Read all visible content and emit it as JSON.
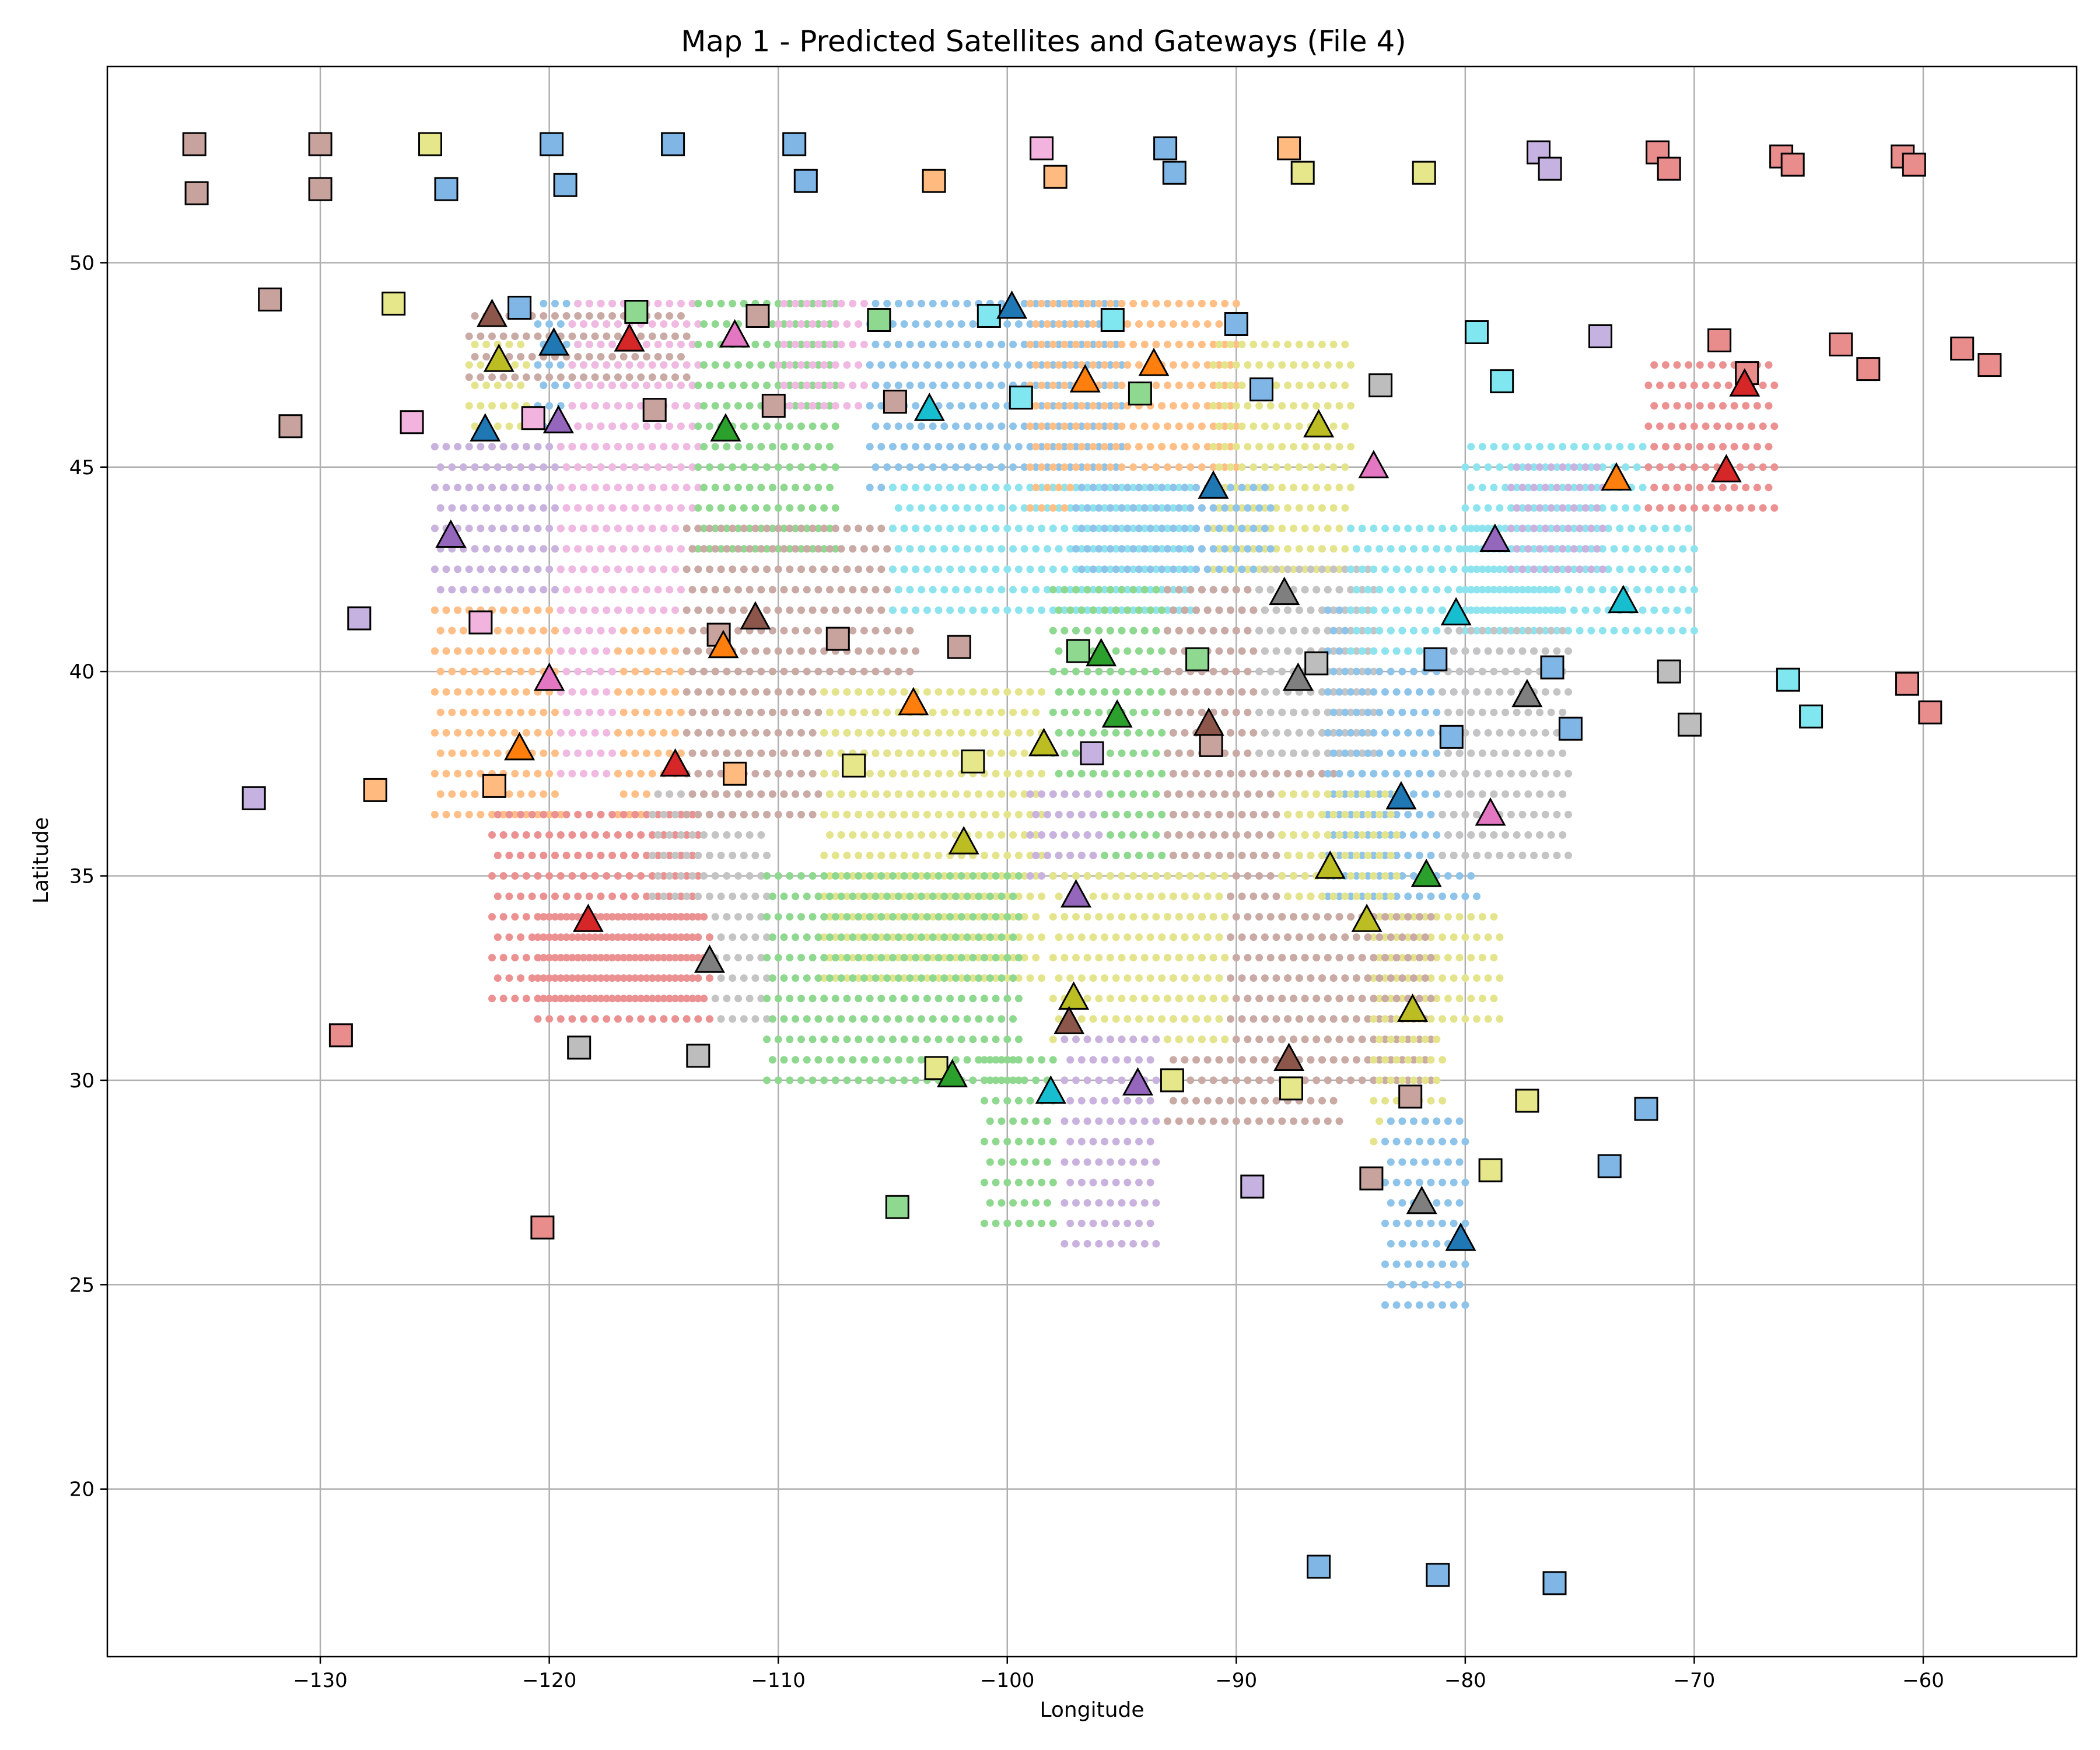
{
  "chart_data": {
    "type": "scatter",
    "title": "Map 1 - Predicted Satellites and Gateways (File 4)",
    "xlabel": "Longitude",
    "ylabel": "Latitude",
    "xlim": [
      -139.3,
      -53.3
    ],
    "ylim": [
      15.9,
      54.8
    ],
    "xticks": [
      -130,
      -120,
      -110,
      -100,
      -90,
      -80,
      -70,
      -60
    ],
    "yticks": [
      20,
      25,
      30,
      35,
      40,
      45,
      50
    ],
    "grid": true,
    "palette": [
      "#1f77b4",
      "#ff7f0e",
      "#2ca02c",
      "#d62728",
      "#9467bd",
      "#8c564b",
      "#e377c2",
      "#7f7f7f",
      "#bcbd22",
      "#17becf"
    ],
    "coverage_regions": [
      {
        "color": 5,
        "x": [
          -123.5,
          -114
        ],
        "y": [
          47.2,
          49.0
        ]
      },
      {
        "color": 0,
        "x": [
          -120.5,
          -116.5
        ],
        "y": [
          45.5,
          49.0
        ]
      },
      {
        "color": 6,
        "x": [
          -119,
          -113.5
        ],
        "y": [
          41.5,
          49.0
        ]
      },
      {
        "color": 8,
        "x": [
          -123.5,
          -121
        ],
        "y": [
          44.5,
          48.0
        ]
      },
      {
        "color": 4,
        "x": [
          -125,
          -119
        ],
        "y": [
          40.5,
          45.5
        ]
      },
      {
        "color": 1,
        "x": [
          -125,
          -119.5
        ],
        "y": [
          36.5,
          41.5
        ]
      },
      {
        "color": 6,
        "x": [
          -119.5,
          -117
        ],
        "y": [
          37.5,
          46.0
        ]
      },
      {
        "color": 1,
        "x": [
          -117,
          -111.5
        ],
        "y": [
          36.5,
          41.0
        ]
      },
      {
        "color": 3,
        "x": [
          -122.5,
          -113.5
        ],
        "y": [
          32.0,
          36.5
        ]
      },
      {
        "color": 7,
        "x": [
          -115.5,
          -110.5
        ],
        "y": [
          31.5,
          37.0
        ]
      },
      {
        "color": 2,
        "x": [
          -113.5,
          -107.5
        ],
        "y": [
          43.0,
          49.0
        ]
      },
      {
        "color": 6,
        "x": [
          -110,
          -106
        ],
        "y": [
          46.5,
          49.0
        ]
      },
      {
        "color": 5,
        "x": [
          -114,
          -104
        ],
        "y": [
          36.5,
          43.5
        ]
      },
      {
        "color": 0,
        "x": [
          -106,
          -95
        ],
        "y": [
          44.5,
          49.0
        ]
      },
      {
        "color": 9,
        "x": [
          -105,
          -92
        ],
        "y": [
          41.5,
          44.5
        ]
      },
      {
        "color": 1,
        "x": [
          -99,
          -90
        ],
        "y": [
          44.0,
          49.0
        ]
      },
      {
        "color": 8,
        "x": [
          -91,
          -85
        ],
        "y": [
          42.5,
          48.0
        ]
      },
      {
        "color": 0,
        "x": [
          -97,
          -88.5
        ],
        "y": [
          41.0,
          44.5
        ]
      },
      {
        "color": 2,
        "x": [
          -98,
          -92.5
        ],
        "y": [
          35.0,
          42.0
        ]
      },
      {
        "color": 5,
        "x": [
          -93,
          -85.5
        ],
        "y": [
          29.0,
          42.0
        ]
      },
      {
        "color": 7,
        "x": [
          -89,
          -84
        ],
        "y": [
          38.0,
          42.5
        ]
      },
      {
        "color": 0,
        "x": [
          -86,
          -79.5
        ],
        "y": [
          34.5,
          41.5
        ]
      },
      {
        "color": 9,
        "x": [
          -85,
          -76
        ],
        "y": [
          40.5,
          43.5
        ]
      },
      {
        "color": 9,
        "x": [
          -80,
          -70
        ],
        "y": [
          41.0,
          45.5
        ]
      },
      {
        "color": 7,
        "x": [
          -81,
          -75.5
        ],
        "y": [
          35.5,
          41.0
        ]
      },
      {
        "color": 3,
        "x": [
          -72,
          -66.5
        ],
        "y": [
          44.0,
          47.5
        ]
      },
      {
        "color": 4,
        "x": [
          -78,
          -74
        ],
        "y": [
          42.5,
          45.0
        ]
      },
      {
        "color": 8,
        "x": [
          -108,
          -98.5
        ],
        "y": [
          32.5,
          39.5
        ]
      },
      {
        "color": 2,
        "x": [
          -110.5,
          -99.5
        ],
        "y": [
          30.0,
          35.0
        ]
      },
      {
        "color": 2,
        "x": [
          -101,
          -98
        ],
        "y": [
          26.5,
          30.5
        ]
      },
      {
        "color": 4,
        "x": [
          -99,
          -96
        ],
        "y": [
          35.0,
          37.0
        ]
      },
      {
        "color": 8,
        "x": [
          -98,
          -90.5
        ],
        "y": [
          31.0,
          35.0
        ]
      },
      {
        "color": 4,
        "x": [
          -97.5,
          -93.5
        ],
        "y": [
          26.0,
          31.0
        ]
      },
      {
        "color": 8,
        "x": [
          -88,
          -83
        ],
        "y": [
          31.0,
          37.0
        ]
      },
      {
        "color": 8,
        "x": [
          -84,
          -78.5
        ],
        "y": [
          31.5,
          34.0
        ]
      },
      {
        "color": 5,
        "x": [
          -88,
          -81.5
        ],
        "y": [
          30.0,
          34.0
        ]
      },
      {
        "color": 8,
        "x": [
          -84,
          -81
        ],
        "y": [
          28.5,
          31.5
        ]
      },
      {
        "color": 0,
        "x": [
          -83.5,
          -80
        ],
        "y": [
          24.5,
          29.0
        ]
      },
      {
        "color": 3,
        "x": [
          -120.5,
          -113
        ],
        "y": [
          31.5,
          34.0
        ]
      }
    ],
    "satellites": [
      {
        "lon": -122.5,
        "lat": 48.7,
        "color": 5
      },
      {
        "lon": -119.8,
        "lat": 48.0,
        "color": 0
      },
      {
        "lon": -116.5,
        "lat": 48.1,
        "color": 3
      },
      {
        "lon": -111.9,
        "lat": 48.2,
        "color": 6
      },
      {
        "lon": -122.2,
        "lat": 47.6,
        "color": 8
      },
      {
        "lon": -122.8,
        "lat": 45.9,
        "color": 0
      },
      {
        "lon": -119.6,
        "lat": 46.1,
        "color": 4
      },
      {
        "lon": -112.3,
        "lat": 45.9,
        "color": 2
      },
      {
        "lon": -124.3,
        "lat": 43.3,
        "color": 4
      },
      {
        "lon": -111.0,
        "lat": 41.3,
        "color": 5
      },
      {
        "lon": -112.4,
        "lat": 40.6,
        "color": 1
      },
      {
        "lon": -120.0,
        "lat": 39.8,
        "color": 6
      },
      {
        "lon": -121.3,
        "lat": 38.1,
        "color": 1
      },
      {
        "lon": -114.5,
        "lat": 37.7,
        "color": 3
      },
      {
        "lon": -118.3,
        "lat": 33.9,
        "color": 3
      },
      {
        "lon": -113.0,
        "lat": 32.9,
        "color": 7
      },
      {
        "lon": -103.4,
        "lat": 46.4,
        "color": 9
      },
      {
        "lon": -99.8,
        "lat": 48.9,
        "color": 0
      },
      {
        "lon": -96.6,
        "lat": 47.1,
        "color": 1
      },
      {
        "lon": -93.6,
        "lat": 47.5,
        "color": 1
      },
      {
        "lon": -91.0,
        "lat": 44.5,
        "color": 0
      },
      {
        "lon": -86.4,
        "lat": 46.0,
        "color": 8
      },
      {
        "lon": -84.0,
        "lat": 45.0,
        "color": 6
      },
      {
        "lon": -104.1,
        "lat": 39.2,
        "color": 1
      },
      {
        "lon": -95.9,
        "lat": 40.4,
        "color": 2
      },
      {
        "lon": -95.2,
        "lat": 38.9,
        "color": 2
      },
      {
        "lon": -98.4,
        "lat": 38.2,
        "color": 8
      },
      {
        "lon": -91.2,
        "lat": 38.7,
        "color": 5
      },
      {
        "lon": -87.9,
        "lat": 41.9,
        "color": 7
      },
      {
        "lon": -87.3,
        "lat": 39.8,
        "color": 7
      },
      {
        "lon": -101.9,
        "lat": 35.8,
        "color": 8
      },
      {
        "lon": -97.0,
        "lat": 34.5,
        "color": 4
      },
      {
        "lon": -97.1,
        "lat": 32.0,
        "color": 8
      },
      {
        "lon": -97.3,
        "lat": 31.4,
        "color": 5
      },
      {
        "lon": -102.4,
        "lat": 30.1,
        "color": 2
      },
      {
        "lon": -98.1,
        "lat": 29.7,
        "color": 9
      },
      {
        "lon": -94.3,
        "lat": 29.9,
        "color": 4
      },
      {
        "lon": -87.7,
        "lat": 30.5,
        "color": 5
      },
      {
        "lon": -85.9,
        "lat": 35.2,
        "color": 8
      },
      {
        "lon": -84.3,
        "lat": 33.9,
        "color": 8
      },
      {
        "lon": -82.3,
        "lat": 31.7,
        "color": 8
      },
      {
        "lon": -82.8,
        "lat": 36.9,
        "color": 0
      },
      {
        "lon": -81.7,
        "lat": 35.0,
        "color": 2
      },
      {
        "lon": -80.4,
        "lat": 41.4,
        "color": 9
      },
      {
        "lon": -78.7,
        "lat": 43.2,
        "color": 4
      },
      {
        "lon": -77.3,
        "lat": 39.4,
        "color": 7
      },
      {
        "lon": -78.9,
        "lat": 36.5,
        "color": 6
      },
      {
        "lon": -73.4,
        "lat": 44.7,
        "color": 1
      },
      {
        "lon": -73.1,
        "lat": 41.7,
        "color": 9
      },
      {
        "lon": -68.6,
        "lat": 44.9,
        "color": 3
      },
      {
        "lon": -67.8,
        "lat": 47.0,
        "color": 3
      },
      {
        "lon": -81.9,
        "lat": 27.0,
        "color": 7
      },
      {
        "lon": -80.2,
        "lat": 26.1,
        "color": 0
      }
    ],
    "gateways": [
      {
        "lon": -135.5,
        "lat": 52.9,
        "color": 5
      },
      {
        "lon": -135.4,
        "lat": 51.7,
        "color": 5
      },
      {
        "lon": -130.0,
        "lat": 52.9,
        "color": 5
      },
      {
        "lon": -130.0,
        "lat": 51.8,
        "color": 5
      },
      {
        "lon": -125.2,
        "lat": 52.9,
        "color": 8
      },
      {
        "lon": -124.5,
        "lat": 51.8,
        "color": 0
      },
      {
        "lon": -119.9,
        "lat": 52.9,
        "color": 0
      },
      {
        "lon": -119.3,
        "lat": 51.9,
        "color": 0
      },
      {
        "lon": -114.6,
        "lat": 52.9,
        "color": 0
      },
      {
        "lon": -109.3,
        "lat": 52.9,
        "color": 0
      },
      {
        "lon": -108.8,
        "lat": 52.0,
        "color": 0
      },
      {
        "lon": -103.2,
        "lat": 52.0,
        "color": 1
      },
      {
        "lon": -98.5,
        "lat": 52.8,
        "color": 6
      },
      {
        "lon": -97.9,
        "lat": 52.1,
        "color": 1
      },
      {
        "lon": -93.1,
        "lat": 52.8,
        "color": 0
      },
      {
        "lon": -92.7,
        "lat": 52.2,
        "color": 0
      },
      {
        "lon": -87.7,
        "lat": 52.8,
        "color": 1
      },
      {
        "lon": -87.1,
        "lat": 52.2,
        "color": 8
      },
      {
        "lon": -81.8,
        "lat": 52.2,
        "color": 8
      },
      {
        "lon": -76.8,
        "lat": 52.7,
        "color": 4
      },
      {
        "lon": -76.3,
        "lat": 52.3,
        "color": 4
      },
      {
        "lon": -71.6,
        "lat": 52.7,
        "color": 3
      },
      {
        "lon": -71.1,
        "lat": 52.3,
        "color": 3
      },
      {
        "lon": -66.2,
        "lat": 52.6,
        "color": 3
      },
      {
        "lon": -65.7,
        "lat": 52.4,
        "color": 3
      },
      {
        "lon": -60.9,
        "lat": 52.6,
        "color": 3
      },
      {
        "lon": -60.4,
        "lat": 52.4,
        "color": 3
      },
      {
        "lon": -132.2,
        "lat": 49.1,
        "color": 5
      },
      {
        "lon": -126.8,
        "lat": 49.0,
        "color": 8
      },
      {
        "lon": -121.3,
        "lat": 48.9,
        "color": 0
      },
      {
        "lon": -116.2,
        "lat": 48.8,
        "color": 2
      },
      {
        "lon": -110.9,
        "lat": 48.7,
        "color": 5
      },
      {
        "lon": -105.6,
        "lat": 48.6,
        "color": 2
      },
      {
        "lon": -100.8,
        "lat": 48.7,
        "color": 9
      },
      {
        "lon": -95.4,
        "lat": 48.6,
        "color": 9
      },
      {
        "lon": -90.0,
        "lat": 48.5,
        "color": 0
      },
      {
        "lon": -79.5,
        "lat": 48.3,
        "color": 9
      },
      {
        "lon": -74.1,
        "lat": 48.2,
        "color": 4
      },
      {
        "lon": -68.9,
        "lat": 48.1,
        "color": 3
      },
      {
        "lon": -63.6,
        "lat": 48.0,
        "color": 3
      },
      {
        "lon": -58.3,
        "lat": 47.9,
        "color": 3
      },
      {
        "lon": -57.1,
        "lat": 47.5,
        "color": 3
      },
      {
        "lon": -62.4,
        "lat": 47.4,
        "color": 3
      },
      {
        "lon": -67.7,
        "lat": 47.3,
        "color": 3
      },
      {
        "lon": -78.4,
        "lat": 47.1,
        "color": 9
      },
      {
        "lon": -83.7,
        "lat": 47.0,
        "color": 7
      },
      {
        "lon": -88.9,
        "lat": 46.9,
        "color": 0
      },
      {
        "lon": -94.2,
        "lat": 46.8,
        "color": 2
      },
      {
        "lon": -99.4,
        "lat": 46.7,
        "color": 9
      },
      {
        "lon": -104.9,
        "lat": 46.6,
        "color": 5
      },
      {
        "lon": -110.2,
        "lat": 46.5,
        "color": 5
      },
      {
        "lon": -115.4,
        "lat": 46.4,
        "color": 5
      },
      {
        "lon": -120.7,
        "lat": 46.2,
        "color": 6
      },
      {
        "lon": -126.0,
        "lat": 46.1,
        "color": 6
      },
      {
        "lon": -131.3,
        "lat": 46.0,
        "color": 5
      },
      {
        "lon": -128.3,
        "lat": 41.3,
        "color": 4
      },
      {
        "lon": -123.0,
        "lat": 41.2,
        "color": 6
      },
      {
        "lon": -112.6,
        "lat": 40.9,
        "color": 5
      },
      {
        "lon": -107.4,
        "lat": 40.8,
        "color": 5
      },
      {
        "lon": -102.1,
        "lat": 40.6,
        "color": 5
      },
      {
        "lon": -96.9,
        "lat": 40.5,
        "color": 2
      },
      {
        "lon": -91.7,
        "lat": 40.3,
        "color": 2
      },
      {
        "lon": -86.5,
        "lat": 40.2,
        "color": 7
      },
      {
        "lon": -81.3,
        "lat": 40.3,
        "color": 0
      },
      {
        "lon": -76.2,
        "lat": 40.1,
        "color": 0
      },
      {
        "lon": -71.1,
        "lat": 40.0,
        "color": 7
      },
      {
        "lon": -65.9,
        "lat": 39.8,
        "color": 9
      },
      {
        "lon": -60.7,
        "lat": 39.7,
        "color": 3
      },
      {
        "lon": -59.7,
        "lat": 39.0,
        "color": 3
      },
      {
        "lon": -64.9,
        "lat": 38.9,
        "color": 9
      },
      {
        "lon": -70.2,
        "lat": 38.7,
        "color": 7
      },
      {
        "lon": -75.4,
        "lat": 38.6,
        "color": 0
      },
      {
        "lon": -80.6,
        "lat": 38.4,
        "color": 0
      },
      {
        "lon": -91.1,
        "lat": 38.2,
        "color": 5
      },
      {
        "lon": -96.3,
        "lat": 38.0,
        "color": 4
      },
      {
        "lon": -101.5,
        "lat": 37.8,
        "color": 8
      },
      {
        "lon": -106.7,
        "lat": 37.7,
        "color": 8
      },
      {
        "lon": -111.9,
        "lat": 37.5,
        "color": 1
      },
      {
        "lon": -122.4,
        "lat": 37.2,
        "color": 1
      },
      {
        "lon": -127.6,
        "lat": 37.1,
        "color": 1
      },
      {
        "lon": -132.9,
        "lat": 36.9,
        "color": 4
      },
      {
        "lon": -129.1,
        "lat": 31.1,
        "color": 3
      },
      {
        "lon": -118.7,
        "lat": 30.8,
        "color": 7
      },
      {
        "lon": -113.5,
        "lat": 30.6,
        "color": 7
      },
      {
        "lon": -103.1,
        "lat": 30.3,
        "color": 8
      },
      {
        "lon": -92.8,
        "lat": 30.0,
        "color": 8
      },
      {
        "lon": -87.6,
        "lat": 29.8,
        "color": 8
      },
      {
        "lon": -82.4,
        "lat": 29.6,
        "color": 5
      },
      {
        "lon": -77.3,
        "lat": 29.5,
        "color": 8
      },
      {
        "lon": -72.1,
        "lat": 29.3,
        "color": 0
      },
      {
        "lon": -73.7,
        "lat": 27.9,
        "color": 0
      },
      {
        "lon": -78.9,
        "lat": 27.8,
        "color": 8
      },
      {
        "lon": -84.1,
        "lat": 27.6,
        "color": 5
      },
      {
        "lon": -89.3,
        "lat": 27.4,
        "color": 4
      },
      {
        "lon": -104.8,
        "lat": 26.9,
        "color": 2
      },
      {
        "lon": -120.3,
        "lat": 26.4,
        "color": 3
      },
      {
        "lon": -86.4,
        "lat": 18.1,
        "color": 0
      },
      {
        "lon": -81.2,
        "lat": 17.9,
        "color": 0
      },
      {
        "lon": -76.1,
        "lat": 17.7,
        "color": 0
      }
    ]
  }
}
